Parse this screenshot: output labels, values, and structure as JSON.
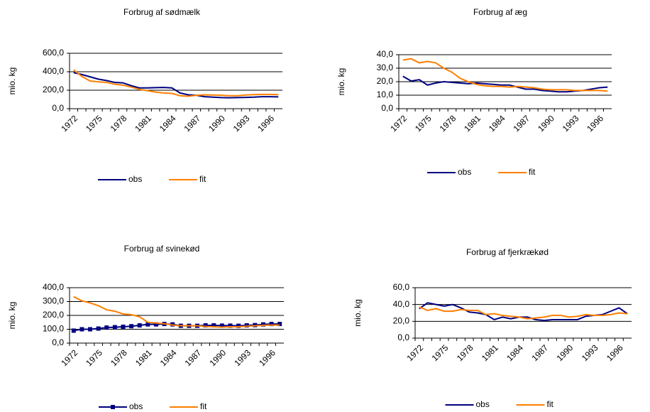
{
  "chart_data": [
    {
      "type": "line",
      "title": "Forbrug af sødmælk",
      "y_label": "mio. kg",
      "categories": [
        "1972",
        null,
        null,
        "1975",
        null,
        null,
        "1978",
        null,
        null,
        "1981",
        null,
        null,
        "1984",
        null,
        null,
        "1987",
        null,
        null,
        "1990",
        null,
        null,
        "1993",
        null,
        null,
        "1996",
        null
      ],
      "ylim": [
        0,
        600
      ],
      "yticks": [
        {
          "value": 0,
          "label": "0,0"
        },
        {
          "value": 200,
          "label": "200,0"
        },
        {
          "value": 400,
          "label": "400,0"
        },
        {
          "value": 600,
          "label": "600,0"
        }
      ],
      "grid": true,
      "legend": "bottom",
      "series": [
        {
          "name": "obs",
          "color": "#000080",
          "values": [
            390,
            370,
            345,
            320,
            305,
            285,
            280,
            250,
            225,
            225,
            228,
            230,
            225,
            170,
            150,
            145,
            130,
            125,
            120,
            118,
            120,
            122,
            125,
            130,
            130,
            128
          ]
        },
        {
          "name": "fit",
          "color": "#ff7f00",
          "values": [
            420,
            350,
            300,
            290,
            285,
            265,
            255,
            235,
            210,
            195,
            180,
            170,
            165,
            140,
            135,
            145,
            150,
            148,
            145,
            140,
            140,
            148,
            152,
            155,
            155,
            152
          ]
        }
      ]
    },
    {
      "type": "line",
      "title": "Forbrug af æg",
      "y_label": "mio. kg",
      "categories": [
        "1972",
        null,
        null,
        "1975",
        null,
        null,
        "1978",
        null,
        null,
        "1981",
        null,
        null,
        "1984",
        null,
        null,
        "1987",
        null,
        null,
        "1990",
        null,
        null,
        "1993",
        null,
        null,
        "1996",
        null
      ],
      "ylim": [
        0,
        40
      ],
      "yticks": [
        {
          "value": 0,
          "label": "0,0"
        },
        {
          "value": 10,
          "label": "10,0"
        },
        {
          "value": 20,
          "label": "20,0"
        },
        {
          "value": 30,
          "label": "30,0"
        },
        {
          "value": 40,
          "label": "40,0"
        }
      ],
      "grid": true,
      "legend": "bottom",
      "series": [
        {
          "name": "obs",
          "color": "#000080",
          "values": [
            24,
            20.5,
            21.5,
            17.5,
            19,
            20,
            19.5,
            19,
            18.5,
            19,
            18.5,
            18,
            17.5,
            17.5,
            16,
            14.5,
            14.5,
            13.5,
            13,
            12.5,
            12.5,
            13,
            13.5,
            14.5,
            15.5,
            16
          ]
        },
        {
          "name": "fit",
          "color": "#ff7f00",
          "values": [
            36,
            37,
            34,
            35,
            34,
            30,
            27,
            22.5,
            20,
            18,
            17,
            16.5,
            16.5,
            16,
            16.5,
            16,
            15.5,
            14.5,
            14,
            14,
            14,
            13.5,
            13.5,
            13.5,
            13.5,
            13
          ]
        }
      ]
    },
    {
      "type": "line",
      "title": "Forbrug af svinekød",
      "y_label": "mio. kg",
      "categories": [
        "1972",
        null,
        null,
        "1975",
        null,
        null,
        "1978",
        null,
        null,
        "1981",
        null,
        null,
        "1984",
        null,
        null,
        "1987",
        null,
        null,
        "1990",
        null,
        null,
        "1993",
        null,
        null,
        "1996",
        null
      ],
      "ylim": [
        0,
        400
      ],
      "yticks": [
        {
          "value": 0,
          "label": "0,0"
        },
        {
          "value": 100,
          "label": "100,0"
        },
        {
          "value": 200,
          "label": "200,0"
        },
        {
          "value": 300,
          "label": "300,0"
        },
        {
          "value": 400,
          "label": "400,0"
        }
      ],
      "grid": true,
      "legend": "bottom",
      "series": [
        {
          "name": "obs",
          "color": "#000080",
          "marker": "square",
          "values": [
            90,
            100,
            100,
            105,
            112,
            115,
            118,
            122,
            128,
            135,
            135,
            138,
            135,
            125,
            125,
            125,
            128,
            128,
            126,
            126,
            125,
            128,
            130,
            135,
            138,
            138
          ]
        },
        {
          "name": "fit",
          "color": "#ff7f00",
          "values": [
            335,
            305,
            290,
            270,
            240,
            230,
            210,
            205,
            190,
            150,
            145,
            140,
            130,
            125,
            125,
            125,
            120,
            118,
            115,
            118,
            118,
            122,
            125,
            128,
            130,
            130
          ]
        }
      ]
    },
    {
      "type": "line",
      "title": "Forbrug af fjerkrækød",
      "y_label": "mio. kg",
      "categories": [
        "1972",
        null,
        null,
        "1975",
        null,
        null,
        "1978",
        null,
        null,
        "1981",
        null,
        null,
        "1984",
        null,
        null,
        "1987",
        null,
        null,
        "1990",
        null,
        null,
        "1993",
        null,
        null,
        "1996",
        null
      ],
      "ylim": [
        0,
        60
      ],
      "yticks": [
        {
          "value": 0,
          "label": "0,0"
        },
        {
          "value": 20,
          "label": "20,0"
        },
        {
          "value": 40,
          "label": "40,0"
        },
        {
          "value": 60,
          "label": "60,0"
        }
      ],
      "grid": true,
      "legend": "bottom",
      "series": [
        {
          "name": "obs",
          "color": "#000080",
          "values": [
            35,
            42,
            40,
            38,
            40,
            36,
            31,
            30,
            28,
            22,
            25,
            23,
            25,
            25,
            22,
            21,
            22,
            22,
            22,
            22,
            26,
            27,
            28,
            32,
            36,
            29
          ]
        },
        {
          "name": "fit",
          "color": "#ff7f00",
          "values": [
            37,
            33,
            35,
            32,
            32,
            34,
            33,
            33,
            28,
            29,
            27,
            26,
            25,
            23,
            24,
            25,
            27,
            27,
            25,
            26,
            28,
            27,
            27,
            28,
            30,
            29
          ]
        }
      ]
    }
  ]
}
